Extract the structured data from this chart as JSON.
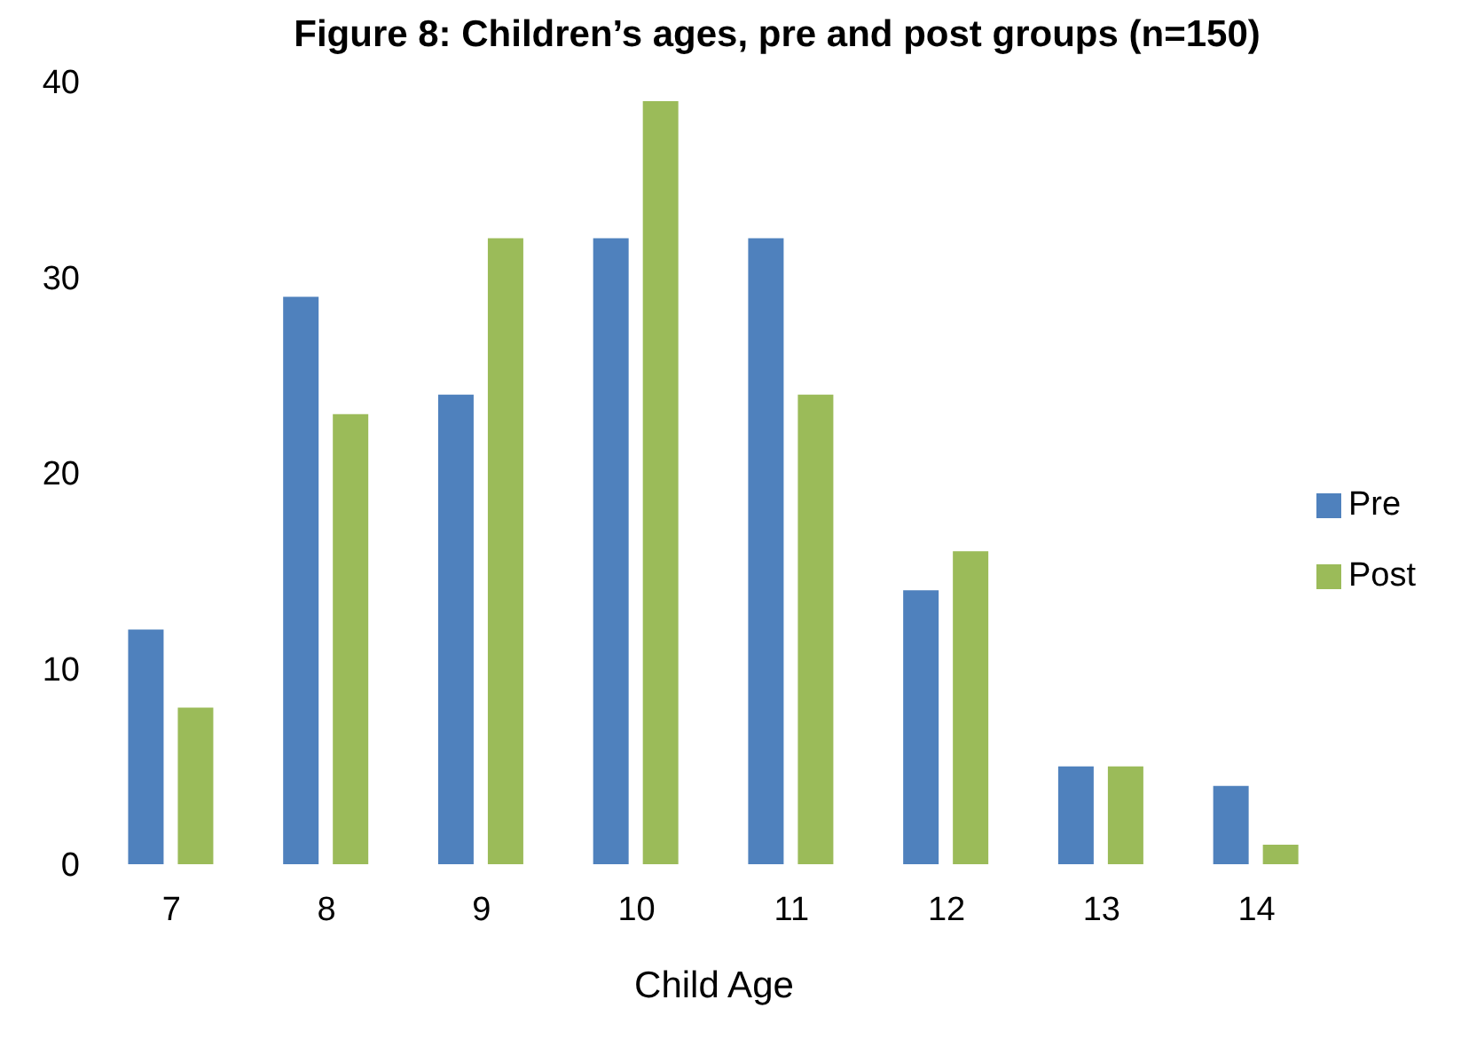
{
  "chart_data": {
    "type": "bar",
    "title": "Figure 8: Children’s ages, pre and post groups (n=150)",
    "xlabel": "Child Age",
    "categories": [
      "7",
      "8",
      "9",
      "10",
      "11",
      "12",
      "13",
      "14"
    ],
    "series": [
      {
        "name": "Pre",
        "color": "#4f81bd",
        "values": [
          12,
          29,
          24,
          32,
          32,
          14,
          5,
          4
        ]
      },
      {
        "name": "Post",
        "color": "#9bbb59",
        "values": [
          8,
          23,
          32,
          39,
          24,
          16,
          5,
          1
        ]
      }
    ],
    "ylim": [
      0,
      40
    ],
    "yticks": [
      0,
      10,
      20,
      30,
      40
    ],
    "grid": false,
    "legend": "right"
  }
}
